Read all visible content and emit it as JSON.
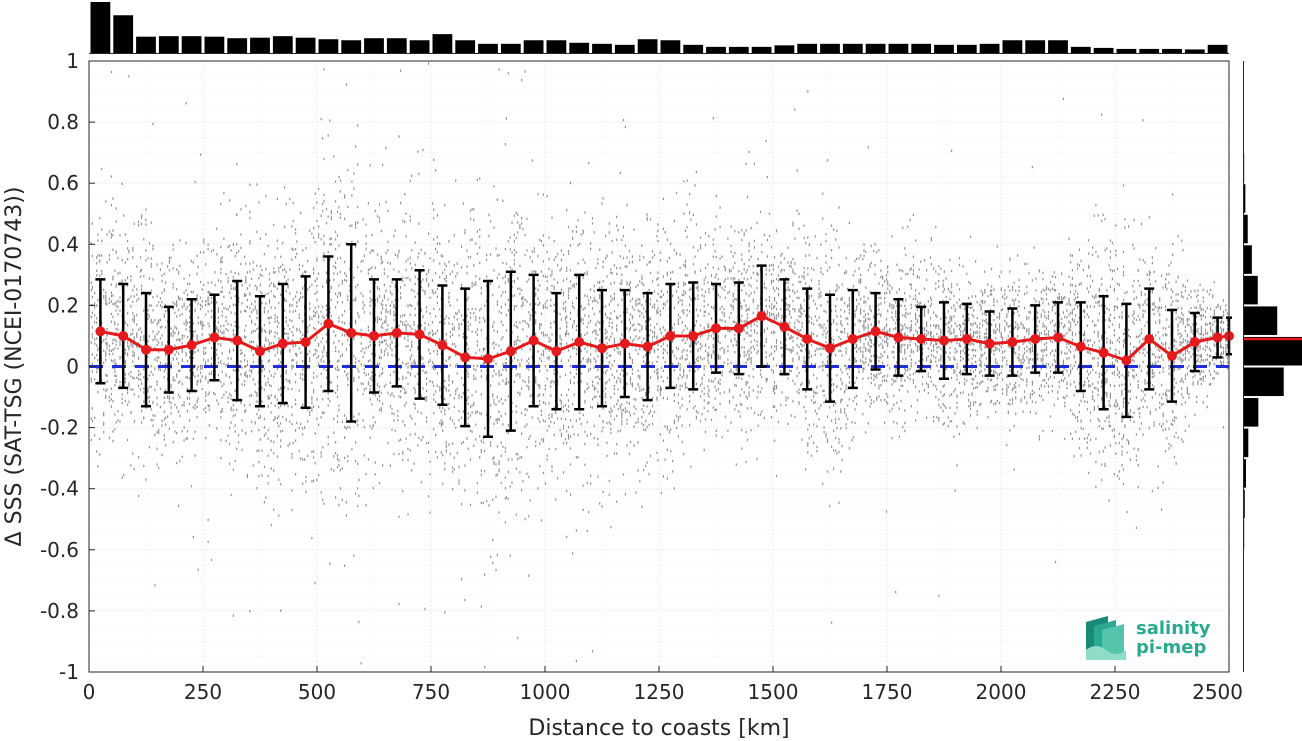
{
  "chart_data": {
    "type": "scatter",
    "title": "",
    "xlabel": "Distance to coasts [km]",
    "ylabel": "Δ SSS (SAT-TSG (NCEI-0170743))",
    "xlim": [
      0,
      2500
    ],
    "ylim": [
      -1,
      1
    ],
    "x_ticks": [
      0,
      250,
      500,
      750,
      1000,
      1250,
      1500,
      1750,
      2000,
      2250,
      2500
    ],
    "y_ticks": [
      -1,
      -0.8,
      -0.6,
      -0.4,
      -0.2,
      0,
      0.2,
      0.4,
      0.6,
      0.8,
      1
    ],
    "grid": true,
    "zero_line": 0,
    "colors": {
      "scatter": "#7f7f7f",
      "mean": "#e41a1c",
      "errorbar": "#000000",
      "zero": "#1f2ed6",
      "hist": "#000000"
    },
    "bin_centers": [
      25,
      75,
      125,
      175,
      225,
      275,
      325,
      375,
      425,
      475,
      525,
      575,
      625,
      675,
      725,
      775,
      825,
      875,
      925,
      975,
      1025,
      1075,
      1125,
      1175,
      1225,
      1275,
      1325,
      1375,
      1425,
      1475,
      1525,
      1575,
      1625,
      1675,
      1725,
      1775,
      1825,
      1875,
      1925,
      1975,
      2025,
      2075,
      2125,
      2175,
      2225,
      2275,
      2325,
      2375,
      2425,
      2475,
      2500
    ],
    "series": [
      {
        "role": "mean",
        "values": [
          0.115,
          0.1,
          0.055,
          0.055,
          0.07,
          0.095,
          0.085,
          0.05,
          0.075,
          0.08,
          0.14,
          0.11,
          0.1,
          0.11,
          0.105,
          0.07,
          0.03,
          0.025,
          0.05,
          0.085,
          0.05,
          0.08,
          0.06,
          0.075,
          0.065,
          0.1,
          0.1,
          0.125,
          0.125,
          0.165,
          0.13,
          0.09,
          0.06,
          0.09,
          0.115,
          0.095,
          0.09,
          0.085,
          0.09,
          0.075,
          0.08,
          0.09,
          0.095,
          0.065,
          0.045,
          0.02,
          0.09,
          0.035,
          0.08,
          0.095,
          0.1
        ]
      },
      {
        "role": "std",
        "values": [
          0.17,
          0.17,
          0.185,
          0.14,
          0.15,
          0.14,
          0.195,
          0.18,
          0.195,
          0.215,
          0.22,
          0.29,
          0.185,
          0.175,
          0.21,
          0.195,
          0.225,
          0.255,
          0.26,
          0.215,
          0.19,
          0.22,
          0.19,
          0.175,
          0.175,
          0.17,
          0.175,
          0.145,
          0.15,
          0.165,
          0.155,
          0.165,
          0.175,
          0.16,
          0.125,
          0.125,
          0.105,
          0.125,
          0.115,
          0.105,
          0.11,
          0.11,
          0.115,
          0.145,
          0.185,
          0.185,
          0.165,
          0.15,
          0.095,
          0.065,
          0.06
        ]
      }
    ],
    "top_histogram": {
      "bin_centers": [
        25,
        75,
        125,
        175,
        225,
        275,
        325,
        375,
        425,
        475,
        525,
        575,
        625,
        675,
        725,
        775,
        825,
        875,
        925,
        975,
        1025,
        1075,
        1125,
        1175,
        1225,
        1275,
        1325,
        1375,
        1425,
        1475,
        1525,
        1575,
        1625,
        1675,
        1725,
        1775,
        1825,
        1875,
        1925,
        1975,
        2025,
        2075,
        2125,
        2175,
        2225,
        2275,
        2325,
        2375,
        2425,
        2475
      ],
      "relative_counts": [
        1.0,
        0.74,
        0.32,
        0.33,
        0.33,
        0.32,
        0.29,
        0.3,
        0.33,
        0.3,
        0.27,
        0.25,
        0.29,
        0.29,
        0.25,
        0.37,
        0.25,
        0.18,
        0.18,
        0.25,
        0.25,
        0.2,
        0.18,
        0.16,
        0.27,
        0.25,
        0.16,
        0.12,
        0.12,
        0.12,
        0.15,
        0.18,
        0.18,
        0.18,
        0.18,
        0.18,
        0.18,
        0.16,
        0.16,
        0.18,
        0.25,
        0.25,
        0.25,
        0.12,
        0.1,
        0.08,
        0.08,
        0.08,
        0.07,
        0.16
      ]
    },
    "side_histogram": {
      "bin_edges": [
        -0.6,
        -0.5,
        -0.4,
        -0.3,
        -0.2,
        -0.1,
        0,
        0.1,
        0.2,
        0.3,
        0.4,
        0.5,
        0.6,
        0.7,
        0.8,
        0.9
      ],
      "relative_counts": [
        0.02,
        0.03,
        0.05,
        0.09,
        0.26,
        0.69,
        1.0,
        0.58,
        0.25,
        0.15,
        0.08,
        0.04,
        0.02,
        0.01,
        0.01
      ],
      "mean_line": 0.09
    },
    "logo": {
      "line1": "salinity",
      "line2": "pi-mep"
    }
  }
}
